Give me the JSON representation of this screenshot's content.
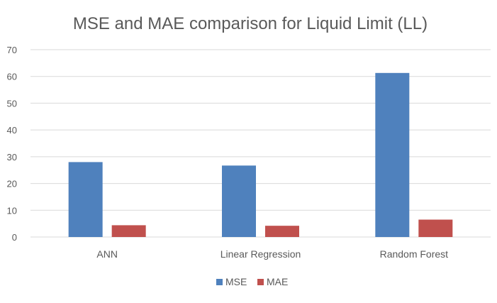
{
  "chart_data": {
    "type": "bar",
    "title": "MSE and MAE comparison for Liquid Limit (LL)",
    "categories": [
      "ANN",
      "Linear Regression",
      "Random Forest"
    ],
    "series": [
      {
        "name": "MSE",
        "values": [
          28.0,
          26.7,
          61.3
        ],
        "color": "#4F81BD"
      },
      {
        "name": "MAE",
        "values": [
          4.4,
          4.2,
          6.5
        ],
        "color": "#C0504D"
      }
    ],
    "ylim": [
      0,
      70
    ],
    "yticks": [
      "0",
      "10",
      "20",
      "30",
      "40",
      "50",
      "60",
      "70"
    ],
    "ytick_values": [
      0,
      10,
      20,
      30,
      40,
      50,
      60,
      70
    ],
    "grid": true,
    "legend_position": "bottom",
    "gridline_color": "#D9D9D9"
  }
}
